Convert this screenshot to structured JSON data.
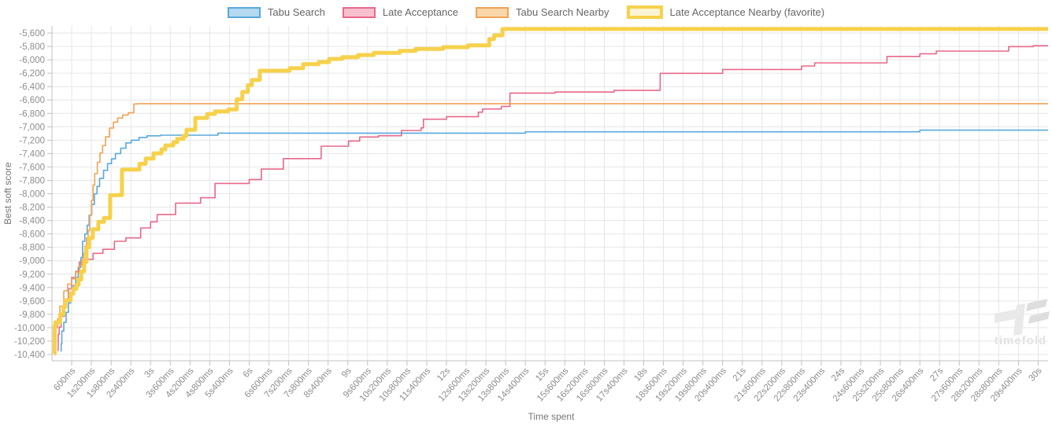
{
  "legend_note": "legend items are derived from chart_data.series",
  "watermark": {
    "text": "timefold"
  },
  "chart_data": {
    "type": "line",
    "stepped": true,
    "title": "",
    "xlabel": "Time spent",
    "ylabel": "Best soft score",
    "x_unit": "seconds",
    "x_tick_interval_s": 0.6,
    "xlim": [
      0,
      30.3
    ],
    "ylim": [
      -10494,
      -5494
    ],
    "grid": true,
    "legend_position": "top",
    "x_tick_labels": [
      "600ms",
      "1s200ms",
      "1s800ms",
      "2s400ms",
      "3s",
      "3s600ms",
      "4s200ms",
      "4s800ms",
      "5s400ms",
      "6s",
      "6s600ms",
      "7s200ms",
      "7s800ms",
      "8s400ms",
      "9s",
      "9s600ms",
      "10s200ms",
      "10s800ms",
      "11s400ms",
      "12s",
      "12s600ms",
      "13s200ms",
      "13s800ms",
      "14s400ms",
      "15s",
      "15s600ms",
      "16s200ms",
      "16s800ms",
      "17s400ms",
      "18s",
      "18s600ms",
      "19s200ms",
      "19s800ms",
      "20s400ms",
      "21s",
      "21s600ms",
      "22s200ms",
      "22s800ms",
      "23s400ms",
      "24s",
      "24s600ms",
      "25s200ms",
      "25s800ms",
      "26s400ms",
      "27s",
      "27s600ms",
      "28s200ms",
      "28s800ms",
      "29s400ms",
      "30s"
    ],
    "y_tick_values": [
      -5600,
      -5800,
      -6000,
      -6200,
      -6400,
      -6600,
      -6800,
      -7000,
      -7200,
      -7400,
      -7600,
      -7800,
      -8000,
      -8200,
      -8400,
      -8600,
      -8800,
      -9000,
      -9200,
      -9400,
      -9600,
      -9800,
      -10000,
      -10200,
      -10400
    ],
    "y_tick_labels": [
      "-5,600",
      "-5,800",
      "-6,000",
      "-6,200",
      "-6,400",
      "-6,600",
      "-6,800",
      "-7,000",
      "-7,200",
      "-7,400",
      "-7,600",
      "-7,800",
      "-8,000",
      "-8,200",
      "-8,400",
      "-8,600",
      "-8,800",
      "-9,000",
      "-9,200",
      "-9,400",
      "-9,600",
      "-9,800",
      "-10,000",
      "-10,200",
      "-10,400"
    ],
    "series": [
      {
        "id": "tabu-search",
        "name": "Tabu Search",
        "line_color": "#58a8dc",
        "fill_color": "#b5d9f0",
        "line_width": 1.6,
        "favorite": false,
        "final_score": -7050,
        "points": [
          [
            0.26,
            -10350
          ],
          [
            0.28,
            -10240
          ],
          [
            0.3,
            -10050
          ],
          [
            0.36,
            -9920
          ],
          [
            0.43,
            -9770
          ],
          [
            0.5,
            -9630
          ],
          [
            0.57,
            -9490
          ],
          [
            0.65,
            -9370
          ],
          [
            0.72,
            -9250
          ],
          [
            0.8,
            -9100
          ],
          [
            0.88,
            -8950
          ],
          [
            0.93,
            -8710
          ],
          [
            1.0,
            -8600
          ],
          [
            1.07,
            -8470
          ],
          [
            1.13,
            -8320
          ],
          [
            1.21,
            -8160
          ],
          [
            1.29,
            -8000
          ],
          [
            1.37,
            -7890
          ],
          [
            1.45,
            -7770
          ],
          [
            1.57,
            -7650
          ],
          [
            1.69,
            -7550
          ],
          [
            1.81,
            -7480
          ],
          [
            1.93,
            -7400
          ],
          [
            2.09,
            -7320
          ],
          [
            2.25,
            -7240
          ],
          [
            2.41,
            -7200
          ],
          [
            2.65,
            -7160
          ],
          [
            2.89,
            -7135
          ],
          [
            3.3,
            -7125
          ],
          [
            5.05,
            -7095
          ],
          [
            14.4,
            -7075
          ],
          [
            26.4,
            -7050
          ]
        ]
      },
      {
        "id": "late-acceptance",
        "name": "Late Acceptance",
        "line_color": "#e8688a",
        "fill_color": "#f8c0cd",
        "line_width": 1.6,
        "favorite": false,
        "final_score": -5790,
        "points": [
          [
            0.17,
            -10340
          ],
          [
            0.19,
            -10100
          ],
          [
            0.22,
            -9990
          ],
          [
            0.28,
            -9830
          ],
          [
            0.38,
            -9600
          ],
          [
            0.5,
            -9420
          ],
          [
            0.6,
            -9250
          ],
          [
            0.72,
            -9160
          ],
          [
            0.83,
            -9020
          ],
          [
            1.0,
            -8980
          ],
          [
            1.25,
            -8890
          ],
          [
            1.55,
            -8830
          ],
          [
            1.9,
            -8710
          ],
          [
            2.25,
            -8660
          ],
          [
            2.7,
            -8510
          ],
          [
            3.0,
            -8420
          ],
          [
            3.2,
            -8310
          ],
          [
            3.76,
            -8140
          ],
          [
            4.52,
            -8060
          ],
          [
            4.96,
            -7846
          ],
          [
            6.0,
            -7787
          ],
          [
            6.37,
            -7631
          ],
          [
            7.04,
            -7475
          ],
          [
            8.19,
            -7290
          ],
          [
            9.02,
            -7212
          ],
          [
            9.36,
            -7153
          ],
          [
            9.93,
            -7134
          ],
          [
            10.63,
            -7055
          ],
          [
            11.23,
            -7016
          ],
          [
            11.3,
            -6887
          ],
          [
            12.0,
            -6848
          ],
          [
            12.97,
            -6782
          ],
          [
            13.1,
            -6735
          ],
          [
            13.67,
            -6696
          ],
          [
            13.93,
            -6496
          ],
          [
            15.3,
            -6481
          ],
          [
            17.1,
            -6455
          ],
          [
            18.5,
            -6202
          ],
          [
            20.4,
            -6144
          ],
          [
            22.8,
            -6093
          ],
          [
            23.2,
            -6046
          ],
          [
            25.4,
            -5949
          ],
          [
            26.4,
            -5909
          ],
          [
            26.9,
            -5870
          ],
          [
            29.1,
            -5803
          ],
          [
            29.85,
            -5790
          ]
        ]
      },
      {
        "id": "tabu-search-nearby",
        "name": "Tabu Search Nearby",
        "line_color": "#f2a254",
        "fill_color": "#fad7ab",
        "line_width": 1.6,
        "favorite": false,
        "final_score": -6655,
        "points": [
          [
            0.1,
            -10390
          ],
          [
            0.12,
            -10000
          ],
          [
            0.17,
            -9870
          ],
          [
            0.24,
            -9680
          ],
          [
            0.36,
            -9450
          ],
          [
            0.48,
            -9350
          ],
          [
            0.6,
            -9270
          ],
          [
            0.72,
            -9170
          ],
          [
            0.84,
            -9070
          ],
          [
            0.91,
            -8980
          ],
          [
            0.96,
            -8890
          ],
          [
            1.0,
            -8780
          ],
          [
            1.05,
            -8660
          ],
          [
            1.1,
            -8550
          ],
          [
            1.15,
            -8320
          ],
          [
            1.2,
            -8100
          ],
          [
            1.25,
            -7870
          ],
          [
            1.3,
            -7700
          ],
          [
            1.38,
            -7530
          ],
          [
            1.46,
            -7390
          ],
          [
            1.54,
            -7280
          ],
          [
            1.63,
            -7150
          ],
          [
            1.75,
            -7020
          ],
          [
            1.87,
            -6930
          ],
          [
            2.0,
            -6870
          ],
          [
            2.15,
            -6825
          ],
          [
            2.32,
            -6790
          ],
          [
            2.49,
            -6660
          ],
          [
            2.6,
            -6655
          ]
        ]
      },
      {
        "id": "late-acceptance-nearby",
        "name": "Late Acceptance Nearby (favorite)",
        "line_color": "#f6d14b",
        "fill_color": "#fcf4d4",
        "line_width": 5,
        "favorite": true,
        "final_score": -5540,
        "points": [
          [
            0.07,
            -10390
          ],
          [
            0.08,
            -9980
          ],
          [
            0.1,
            -9920
          ],
          [
            0.25,
            -9800
          ],
          [
            0.35,
            -9690
          ],
          [
            0.41,
            -9590
          ],
          [
            0.57,
            -9490
          ],
          [
            0.65,
            -9420
          ],
          [
            0.74,
            -9360
          ],
          [
            0.81,
            -9280
          ],
          [
            0.89,
            -9160
          ],
          [
            0.98,
            -9020
          ],
          [
            1.05,
            -8800
          ],
          [
            1.13,
            -8660
          ],
          [
            1.24,
            -8530
          ],
          [
            1.41,
            -8420
          ],
          [
            1.58,
            -8360
          ],
          [
            1.77,
            -8020
          ],
          [
            2.13,
            -7640
          ],
          [
            2.66,
            -7553
          ],
          [
            2.85,
            -7475
          ],
          [
            3.09,
            -7396
          ],
          [
            3.33,
            -7337
          ],
          [
            3.45,
            -7278
          ],
          [
            3.69,
            -7231
          ],
          [
            3.81,
            -7181
          ],
          [
            4.0,
            -7134
          ],
          [
            4.09,
            -7044
          ],
          [
            4.36,
            -6868
          ],
          [
            4.72,
            -6809
          ],
          [
            4.96,
            -6770
          ],
          [
            5.36,
            -6742
          ],
          [
            5.62,
            -6590
          ],
          [
            5.79,
            -6480
          ],
          [
            5.96,
            -6379
          ],
          [
            6.08,
            -6300
          ],
          [
            6.32,
            -6163
          ],
          [
            7.23,
            -6124
          ],
          [
            7.64,
            -6065
          ],
          [
            8.11,
            -6034
          ],
          [
            8.43,
            -5987
          ],
          [
            8.83,
            -5960
          ],
          [
            9.31,
            -5928
          ],
          [
            9.79,
            -5897
          ],
          [
            10.58,
            -5866
          ],
          [
            11.06,
            -5838
          ],
          [
            11.9,
            -5811
          ],
          [
            12.66,
            -5784
          ],
          [
            13.3,
            -5690
          ],
          [
            13.45,
            -5635
          ],
          [
            13.7,
            -5540
          ]
        ]
      }
    ],
    "style": {
      "grid_color": "#e6e6e6",
      "axis_line_color": "#c0c0c0",
      "tick_text_color": "#8d8d8d",
      "axis_title_color": "#777777",
      "background": "#ffffff",
      "watermark_color_light": "#e9e9e9",
      "watermark_color_dark": "#dedede"
    }
  }
}
